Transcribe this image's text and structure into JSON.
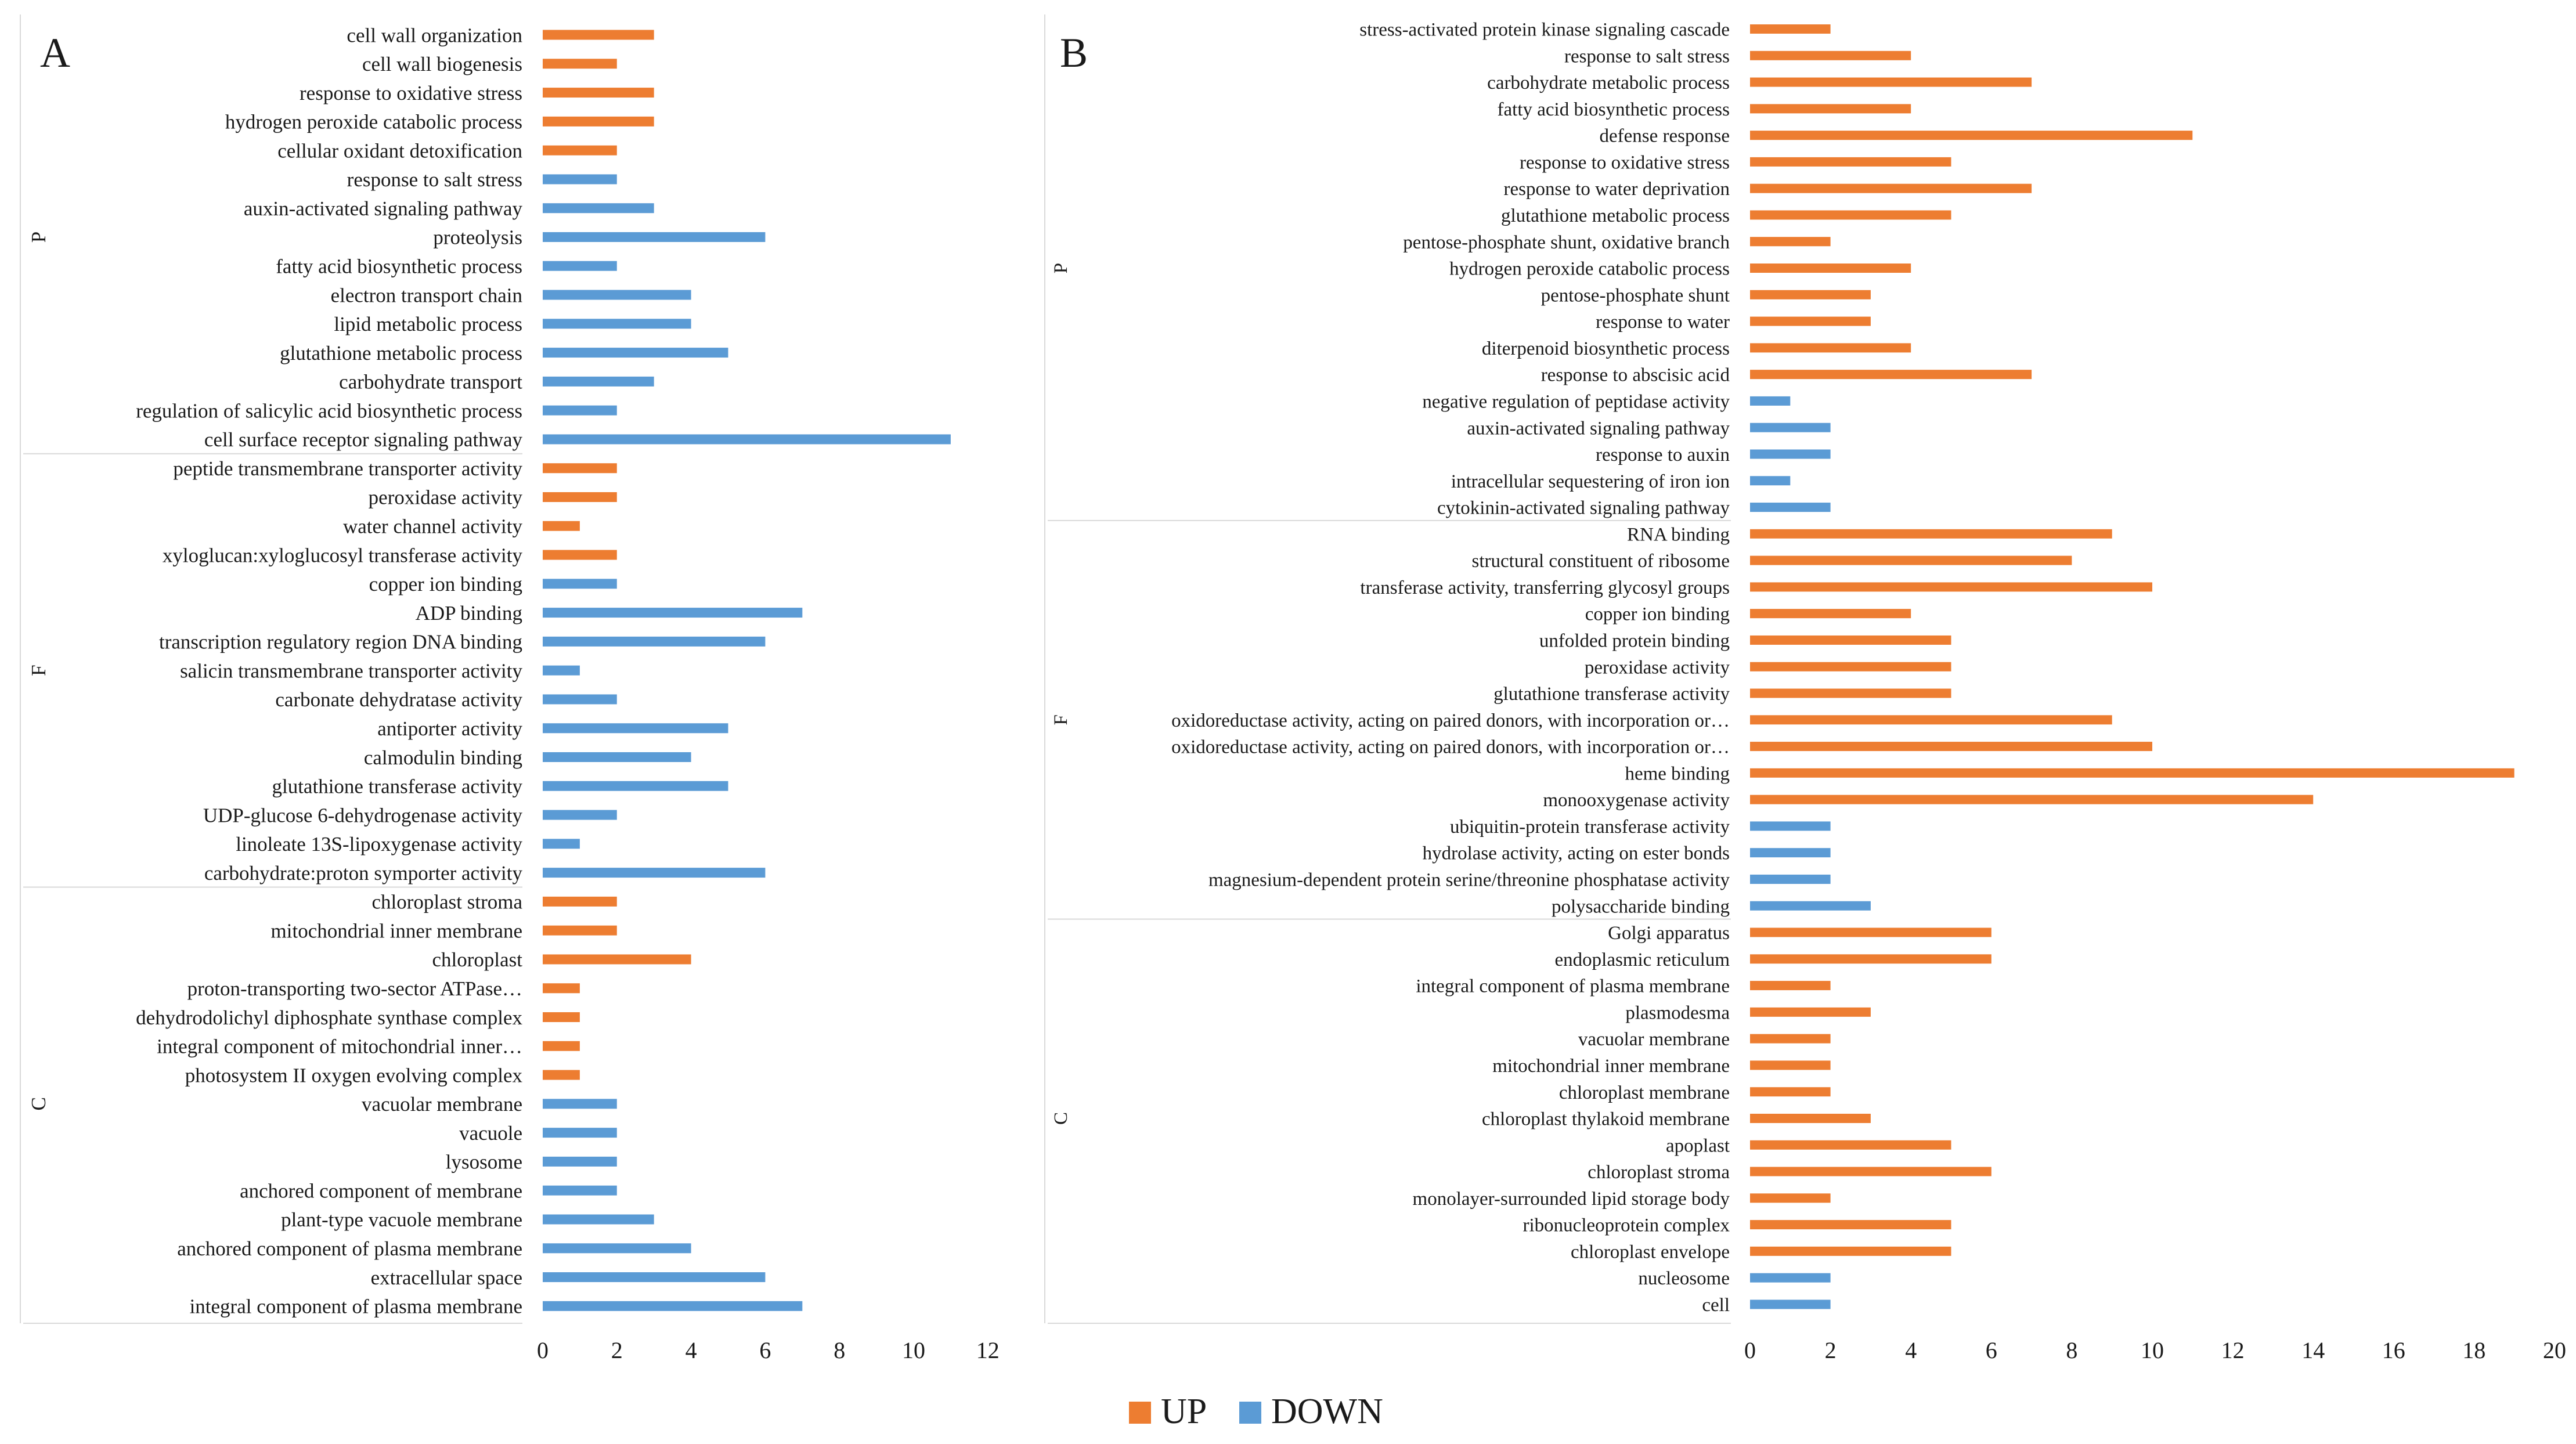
{
  "figure": {
    "legend": [
      {
        "name": "UP",
        "color": "#ED7D31"
      },
      {
        "name": "DOWN",
        "color": "#5B9BD5"
      }
    ]
  },
  "chart_data": [
    {
      "type": "bar",
      "orientation": "horizontal",
      "panel_label": "A",
      "xlim": [
        0,
        12
      ],
      "x_ticks": [
        0,
        2,
        4,
        6,
        8,
        10,
        12
      ],
      "groups": [
        {
          "name": "P",
          "items": [
            {
              "label": "cell wall organization",
              "value": 3,
              "series": "UP"
            },
            {
              "label": "cell wall biogenesis",
              "value": 2,
              "series": "UP"
            },
            {
              "label": "response to oxidative stress",
              "value": 3,
              "series": "UP"
            },
            {
              "label": "hydrogen peroxide catabolic process",
              "value": 3,
              "series": "UP"
            },
            {
              "label": "cellular oxidant detoxification",
              "value": 2,
              "series": "UP"
            },
            {
              "label": "response to salt stress",
              "value": 2,
              "series": "DOWN"
            },
            {
              "label": "auxin-activated signaling pathway",
              "value": 3,
              "series": "DOWN"
            },
            {
              "label": "proteolysis",
              "value": 6,
              "series": "DOWN"
            },
            {
              "label": "fatty acid biosynthetic process",
              "value": 2,
              "series": "DOWN"
            },
            {
              "label": "electron transport chain",
              "value": 4,
              "series": "DOWN"
            },
            {
              "label": "lipid metabolic process",
              "value": 4,
              "series": "DOWN"
            },
            {
              "label": "glutathione metabolic process",
              "value": 5,
              "series": "DOWN"
            },
            {
              "label": "carbohydrate transport",
              "value": 3,
              "series": "DOWN"
            },
            {
              "label": "regulation of salicylic acid biosynthetic process",
              "value": 2,
              "series": "DOWN"
            },
            {
              "label": "cell surface receptor signaling pathway",
              "value": 11,
              "series": "DOWN"
            }
          ]
        },
        {
          "name": "F",
          "items": [
            {
              "label": "peptide transmembrane transporter activity",
              "value": 2,
              "series": "UP"
            },
            {
              "label": "peroxidase activity",
              "value": 2,
              "series": "UP"
            },
            {
              "label": "water channel activity",
              "value": 1,
              "series": "UP"
            },
            {
              "label": "xyloglucan:xyloglucosyl transferase activity",
              "value": 2,
              "series": "UP"
            },
            {
              "label": "copper ion binding",
              "value": 2,
              "series": "DOWN"
            },
            {
              "label": "ADP binding",
              "value": 7,
              "series": "DOWN"
            },
            {
              "label": "transcription regulatory region DNA binding",
              "value": 6,
              "series": "DOWN"
            },
            {
              "label": "salicin transmembrane transporter activity",
              "value": 1,
              "series": "DOWN"
            },
            {
              "label": "carbonate dehydratase activity",
              "value": 2,
              "series": "DOWN"
            },
            {
              "label": "antiporter activity",
              "value": 5,
              "series": "DOWN"
            },
            {
              "label": "calmodulin binding",
              "value": 4,
              "series": "DOWN"
            },
            {
              "label": "glutathione transferase activity",
              "value": 5,
              "series": "DOWN"
            },
            {
              "label": "UDP-glucose 6-dehydrogenase activity",
              "value": 2,
              "series": "DOWN"
            },
            {
              "label": "linoleate 13S-lipoxygenase activity",
              "value": 1,
              "series": "DOWN"
            },
            {
              "label": "carbohydrate:proton symporter activity",
              "value": 6,
              "series": "DOWN"
            }
          ]
        },
        {
          "name": "C",
          "items": [
            {
              "label": "chloroplast stroma",
              "value": 2,
              "series": "UP"
            },
            {
              "label": "mitochondrial inner membrane",
              "value": 2,
              "series": "UP"
            },
            {
              "label": "chloroplast",
              "value": 4,
              "series": "UP"
            },
            {
              "label": "proton-transporting two-sector ATPase…",
              "value": 1,
              "series": "UP"
            },
            {
              "label": "dehydrodolichyl diphosphate synthase complex",
              "value": 1,
              "series": "UP"
            },
            {
              "label": "integral component of mitochondrial inner…",
              "value": 1,
              "series": "UP"
            },
            {
              "label": "photosystem II oxygen evolving complex",
              "value": 1,
              "series": "UP"
            },
            {
              "label": "vacuolar membrane",
              "value": 2,
              "series": "DOWN"
            },
            {
              "label": "vacuole",
              "value": 2,
              "series": "DOWN"
            },
            {
              "label": "lysosome",
              "value": 2,
              "series": "DOWN"
            },
            {
              "label": "anchored component of membrane",
              "value": 2,
              "series": "DOWN"
            },
            {
              "label": "plant-type vacuole membrane",
              "value": 3,
              "series": "DOWN"
            },
            {
              "label": "anchored component of plasma membrane",
              "value": 4,
              "series": "DOWN"
            },
            {
              "label": "extracellular space",
              "value": 6,
              "series": "DOWN"
            },
            {
              "label": "integral component of plasma membrane",
              "value": 7,
              "series": "DOWN"
            }
          ]
        }
      ]
    },
    {
      "type": "bar",
      "orientation": "horizontal",
      "panel_label": "B",
      "xlim": [
        0,
        20
      ],
      "x_ticks": [
        0,
        2,
        4,
        6,
        8,
        10,
        12,
        14,
        16,
        18,
        20
      ],
      "groups": [
        {
          "name": "P",
          "items": [
            {
              "label": "stress-activated protein kinase signaling cascade",
              "value": 2,
              "series": "UP"
            },
            {
              "label": "response to salt stress",
              "value": 4,
              "series": "UP"
            },
            {
              "label": "carbohydrate metabolic process",
              "value": 7,
              "series": "UP"
            },
            {
              "label": "fatty acid biosynthetic process",
              "value": 4,
              "series": "UP"
            },
            {
              "label": "defense response",
              "value": 11,
              "series": "UP"
            },
            {
              "label": "response to oxidative stress",
              "value": 5,
              "series": "UP"
            },
            {
              "label": "response to water deprivation",
              "value": 7,
              "series": "UP"
            },
            {
              "label": "glutathione metabolic process",
              "value": 5,
              "series": "UP"
            },
            {
              "label": "pentose-phosphate shunt, oxidative branch",
              "value": 2,
              "series": "UP"
            },
            {
              "label": "hydrogen peroxide catabolic process",
              "value": 4,
              "series": "UP"
            },
            {
              "label": "pentose-phosphate shunt",
              "value": 3,
              "series": "UP"
            },
            {
              "label": "response to water",
              "value": 3,
              "series": "UP"
            },
            {
              "label": "diterpenoid biosynthetic process",
              "value": 4,
              "series": "UP"
            },
            {
              "label": "response to abscisic acid",
              "value": 7,
              "series": "UP"
            },
            {
              "label": "negative regulation of peptidase activity",
              "value": 1,
              "series": "DOWN"
            },
            {
              "label": "auxin-activated signaling pathway",
              "value": 2,
              "series": "DOWN"
            },
            {
              "label": "response to auxin",
              "value": 2,
              "series": "DOWN"
            },
            {
              "label": "intracellular sequestering of iron ion",
              "value": 1,
              "series": "DOWN"
            },
            {
              "label": "cytokinin-activated signaling pathway",
              "value": 2,
              "series": "DOWN"
            }
          ]
        },
        {
          "name": "F",
          "items": [
            {
              "label": "RNA binding",
              "value": 9,
              "series": "UP"
            },
            {
              "label": "structural constituent of ribosome",
              "value": 8,
              "series": "UP"
            },
            {
              "label": "transferase activity, transferring glycosyl groups",
              "value": 10,
              "series": "UP"
            },
            {
              "label": "copper ion binding",
              "value": 4,
              "series": "UP"
            },
            {
              "label": "unfolded protein binding",
              "value": 5,
              "series": "UP"
            },
            {
              "label": "peroxidase activity",
              "value": 5,
              "series": "UP"
            },
            {
              "label": "glutathione transferase activity",
              "value": 5,
              "series": "UP"
            },
            {
              "label": "oxidoreductase activity, acting on paired donors, with incorporation or…",
              "value": 9,
              "series": "UP"
            },
            {
              "label": "oxidoreductase activity, acting on paired donors, with incorporation or…",
              "value": 10,
              "series": "UP"
            },
            {
              "label": "heme binding",
              "value": 19,
              "series": "UP"
            },
            {
              "label": "monooxygenase activity",
              "value": 14,
              "series": "UP"
            },
            {
              "label": "ubiquitin-protein transferase activity",
              "value": 2,
              "series": "DOWN"
            },
            {
              "label": "hydrolase activity, acting on ester bonds",
              "value": 2,
              "series": "DOWN"
            },
            {
              "label": "magnesium-dependent protein serine/threonine phosphatase activity",
              "value": 2,
              "series": "DOWN"
            },
            {
              "label": "polysaccharide binding",
              "value": 3,
              "series": "DOWN"
            }
          ]
        },
        {
          "name": "C",
          "items": [
            {
              "label": "Golgi apparatus",
              "value": 6,
              "series": "UP"
            },
            {
              "label": "endoplasmic reticulum",
              "value": 6,
              "series": "UP"
            },
            {
              "label": "integral component of plasma membrane",
              "value": 2,
              "series": "UP"
            },
            {
              "label": "plasmodesma",
              "value": 3,
              "series": "UP"
            },
            {
              "label": "vacuolar membrane",
              "value": 2,
              "series": "UP"
            },
            {
              "label": "mitochondrial inner membrane",
              "value": 2,
              "series": "UP"
            },
            {
              "label": "chloroplast membrane",
              "value": 2,
              "series": "UP"
            },
            {
              "label": "chloroplast thylakoid membrane",
              "value": 3,
              "series": "UP"
            },
            {
              "label": "apoplast",
              "value": 5,
              "series": "UP"
            },
            {
              "label": "chloroplast stroma",
              "value": 6,
              "series": "UP"
            },
            {
              "label": "monolayer-surrounded lipid storage body",
              "value": 2,
              "series": "UP"
            },
            {
              "label": "ribonucleoprotein complex",
              "value": 5,
              "series": "UP"
            },
            {
              "label": "chloroplast envelope",
              "value": 5,
              "series": "UP"
            },
            {
              "label": "nucleosome",
              "value": 2,
              "series": "DOWN"
            },
            {
              "label": "cell",
              "value": 2,
              "series": "DOWN"
            }
          ]
        }
      ]
    }
  ]
}
